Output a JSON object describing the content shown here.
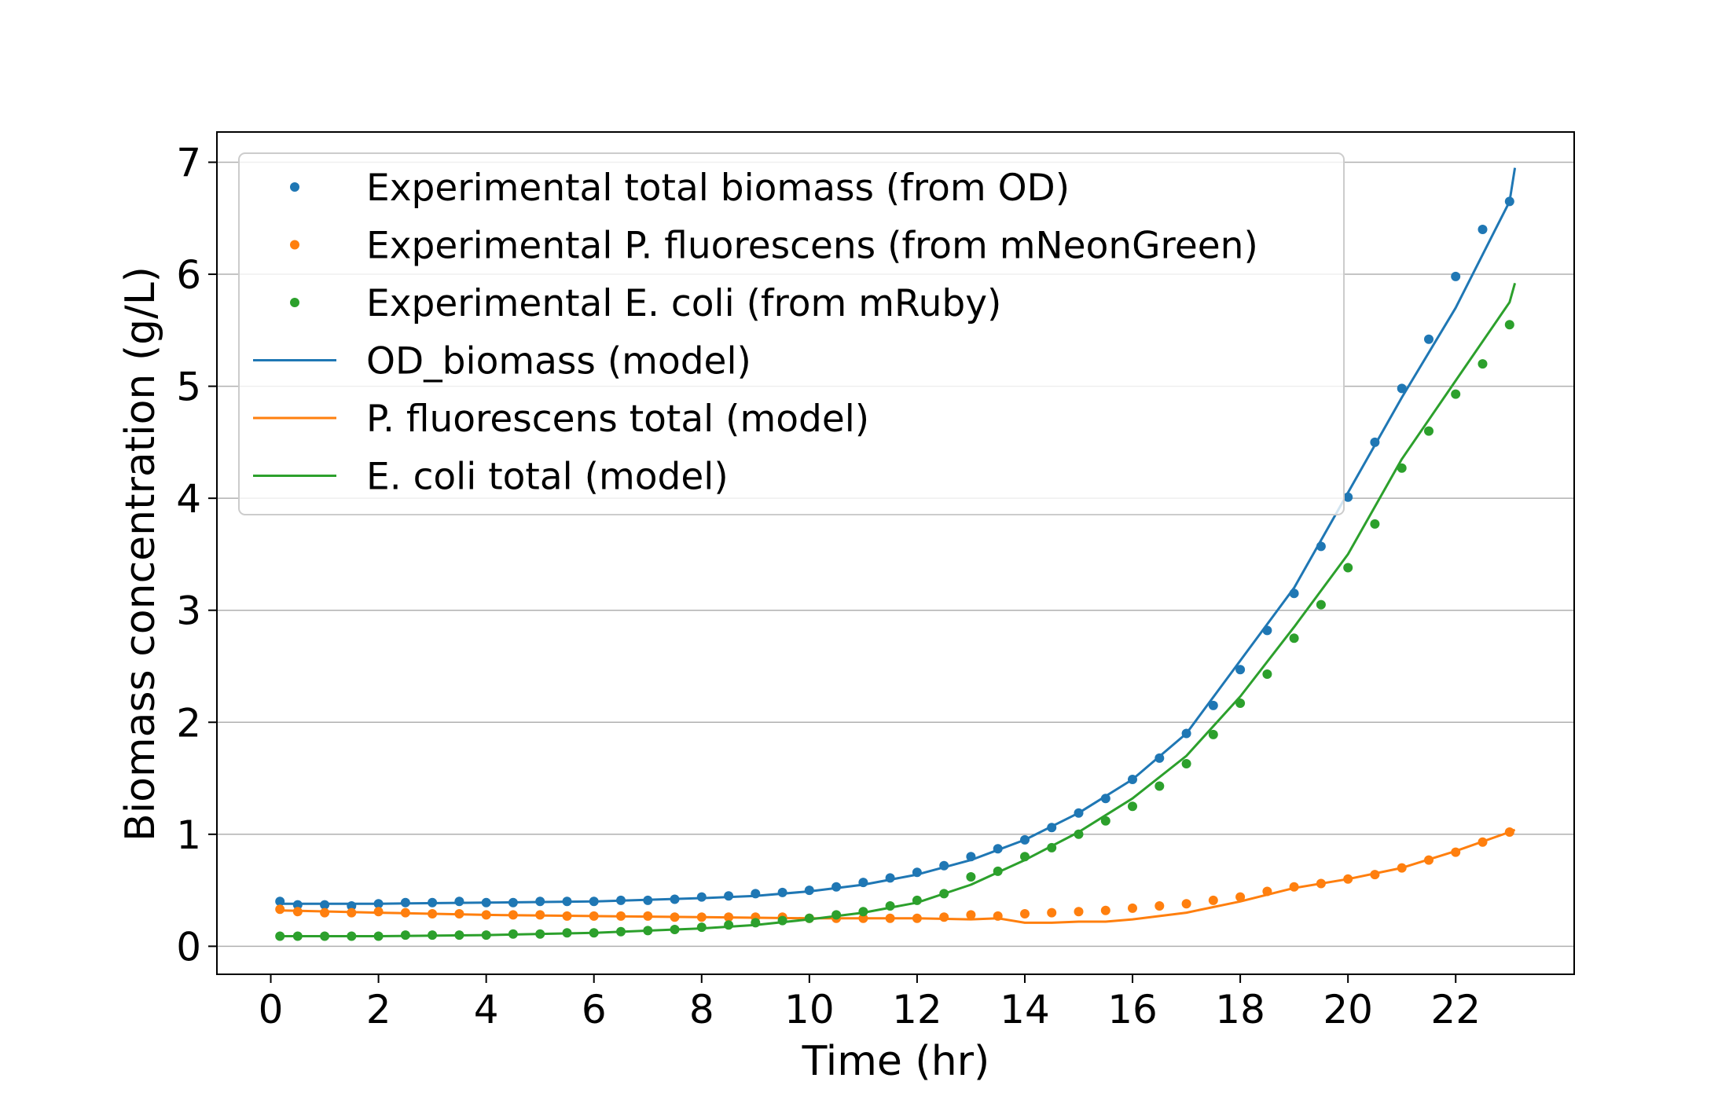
{
  "chart_data": {
    "type": "scatter+line",
    "title": "",
    "xlabel": "Time (hr)",
    "ylabel": "Biomass concentration (g/L)",
    "xlim": [
      -1,
      24.2
    ],
    "ylim": [
      -0.25,
      7.27
    ],
    "xticks": [
      0,
      2,
      4,
      6,
      8,
      10,
      12,
      14,
      16,
      18,
      20,
      22
    ],
    "yticks": [
      0,
      1,
      2,
      3,
      4,
      5,
      6,
      7
    ],
    "grid": "horizontal",
    "legend_position": "upper-left",
    "colors": {
      "blue": "#1f77b4",
      "orange": "#ff7f0e",
      "green": "#2ca02c"
    },
    "scatter_series": [
      {
        "name": "Experimental total biomass (from OD)",
        "color": "#1f77b4",
        "x": [
          0.17,
          0.5,
          1,
          1.5,
          2,
          2.5,
          3,
          3.5,
          4,
          4.5,
          5,
          5.5,
          6,
          6.5,
          7,
          7.5,
          8,
          8.5,
          9,
          9.5,
          10,
          10.5,
          11,
          11.5,
          12,
          12.5,
          13,
          13.5,
          14,
          14.5,
          15,
          15.5,
          16,
          16.5,
          17,
          17.5,
          18,
          18.5,
          19,
          19.5,
          20,
          20.5,
          21,
          21.5,
          22,
          22.5,
          23
        ],
        "y": [
          0.4,
          0.37,
          0.37,
          0.36,
          0.38,
          0.39,
          0.39,
          0.4,
          0.39,
          0.39,
          0.4,
          0.4,
          0.4,
          0.41,
          0.41,
          0.42,
          0.44,
          0.45,
          0.47,
          0.48,
          0.5,
          0.53,
          0.57,
          0.61,
          0.66,
          0.72,
          0.8,
          0.87,
          0.95,
          1.06,
          1.19,
          1.32,
          1.49,
          1.68,
          1.9,
          2.15,
          2.47,
          2.82,
          3.15,
          3.57,
          4.01,
          4.5,
          4.98,
          5.42,
          5.98,
          6.4,
          6.65
        ]
      },
      {
        "name": "Experimental P. fluorescens (from mNeonGreen)",
        "color": "#ff7f0e",
        "x": [
          0.17,
          0.5,
          1,
          1.5,
          2,
          2.5,
          3,
          3.5,
          4,
          4.5,
          5,
          5.5,
          6,
          6.5,
          7,
          7.5,
          8,
          8.5,
          9,
          9.5,
          10,
          10.5,
          11,
          11.5,
          12,
          12.5,
          13,
          13.5,
          14,
          14.5,
          15,
          15.5,
          16,
          16.5,
          17,
          17.5,
          18,
          18.5,
          19,
          19.5,
          20,
          20.5,
          21,
          21.5,
          22,
          22.5,
          23
        ],
        "y": [
          0.33,
          0.31,
          0.3,
          0.3,
          0.31,
          0.3,
          0.29,
          0.29,
          0.28,
          0.28,
          0.28,
          0.27,
          0.27,
          0.27,
          0.27,
          0.26,
          0.26,
          0.26,
          0.26,
          0.26,
          0.25,
          0.25,
          0.25,
          0.25,
          0.25,
          0.26,
          0.28,
          0.27,
          0.29,
          0.3,
          0.31,
          0.32,
          0.34,
          0.36,
          0.38,
          0.41,
          0.44,
          0.49,
          0.53,
          0.56,
          0.6,
          0.64,
          0.7,
          0.77,
          0.84,
          0.93,
          1.02
        ]
      },
      {
        "name": "Experimental E. coli (from mRuby)",
        "color": "#2ca02c",
        "x": [
          0.17,
          0.5,
          1,
          1.5,
          2,
          2.5,
          3,
          3.5,
          4,
          4.5,
          5,
          5.5,
          6,
          6.5,
          7,
          7.5,
          8,
          8.5,
          9,
          9.5,
          10,
          10.5,
          11,
          11.5,
          12,
          12.5,
          13,
          13.5,
          14,
          14.5,
          15,
          15.5,
          16,
          16.5,
          17,
          17.5,
          18,
          18.5,
          19,
          19.5,
          20,
          20.5,
          21,
          21.5,
          22,
          22.5,
          23
        ],
        "y": [
          0.09,
          0.09,
          0.09,
          0.09,
          0.09,
          0.1,
          0.1,
          0.1,
          0.1,
          0.11,
          0.11,
          0.12,
          0.12,
          0.13,
          0.14,
          0.15,
          0.17,
          0.19,
          0.21,
          0.23,
          0.25,
          0.28,
          0.31,
          0.36,
          0.41,
          0.47,
          0.62,
          0.67,
          0.8,
          0.88,
          1.0,
          1.12,
          1.25,
          1.43,
          1.63,
          1.89,
          2.17,
          2.43,
          2.75,
          3.05,
          3.38,
          3.77,
          4.27,
          4.6,
          4.93,
          5.2,
          5.55
        ]
      }
    ],
    "line_series": [
      {
        "name": "OD_biomass (model)",
        "color": "#1f77b4",
        "x": [
          0.17,
          2,
          4,
          6,
          8,
          9,
          10,
          11,
          12,
          13,
          14,
          15,
          16,
          17,
          18,
          19,
          20,
          21,
          22,
          23,
          23.1
        ],
        "y": [
          0.38,
          0.38,
          0.39,
          0.4,
          0.43,
          0.45,
          0.49,
          0.55,
          0.64,
          0.77,
          0.95,
          1.19,
          1.49,
          1.9,
          2.55,
          3.2,
          4.05,
          4.9,
          5.7,
          6.65,
          6.95
        ]
      },
      {
        "name": "P. fluorescens total (model)",
        "color": "#ff7f0e",
        "x": [
          0.17,
          2,
          4,
          6,
          8,
          10,
          12,
          13,
          13.5,
          14,
          14.5,
          15,
          15.5,
          16,
          17,
          18,
          19,
          20,
          21,
          22,
          23,
          23.1
        ],
        "y": [
          0.32,
          0.3,
          0.28,
          0.27,
          0.26,
          0.25,
          0.25,
          0.24,
          0.25,
          0.21,
          0.21,
          0.22,
          0.22,
          0.24,
          0.3,
          0.4,
          0.52,
          0.6,
          0.7,
          0.85,
          1.02,
          1.04
        ]
      },
      {
        "name": "E. coli total (model)",
        "color": "#2ca02c",
        "x": [
          0.17,
          2,
          4,
          6,
          8,
          9,
          10,
          11,
          12,
          13,
          14,
          15,
          16,
          17,
          18,
          19,
          20,
          21,
          22,
          23,
          23.1
        ],
        "y": [
          0.09,
          0.09,
          0.1,
          0.12,
          0.16,
          0.19,
          0.24,
          0.3,
          0.39,
          0.55,
          0.77,
          1.02,
          1.32,
          1.7,
          2.23,
          2.85,
          3.5,
          4.35,
          5.05,
          5.75,
          5.92
        ]
      }
    ]
  }
}
